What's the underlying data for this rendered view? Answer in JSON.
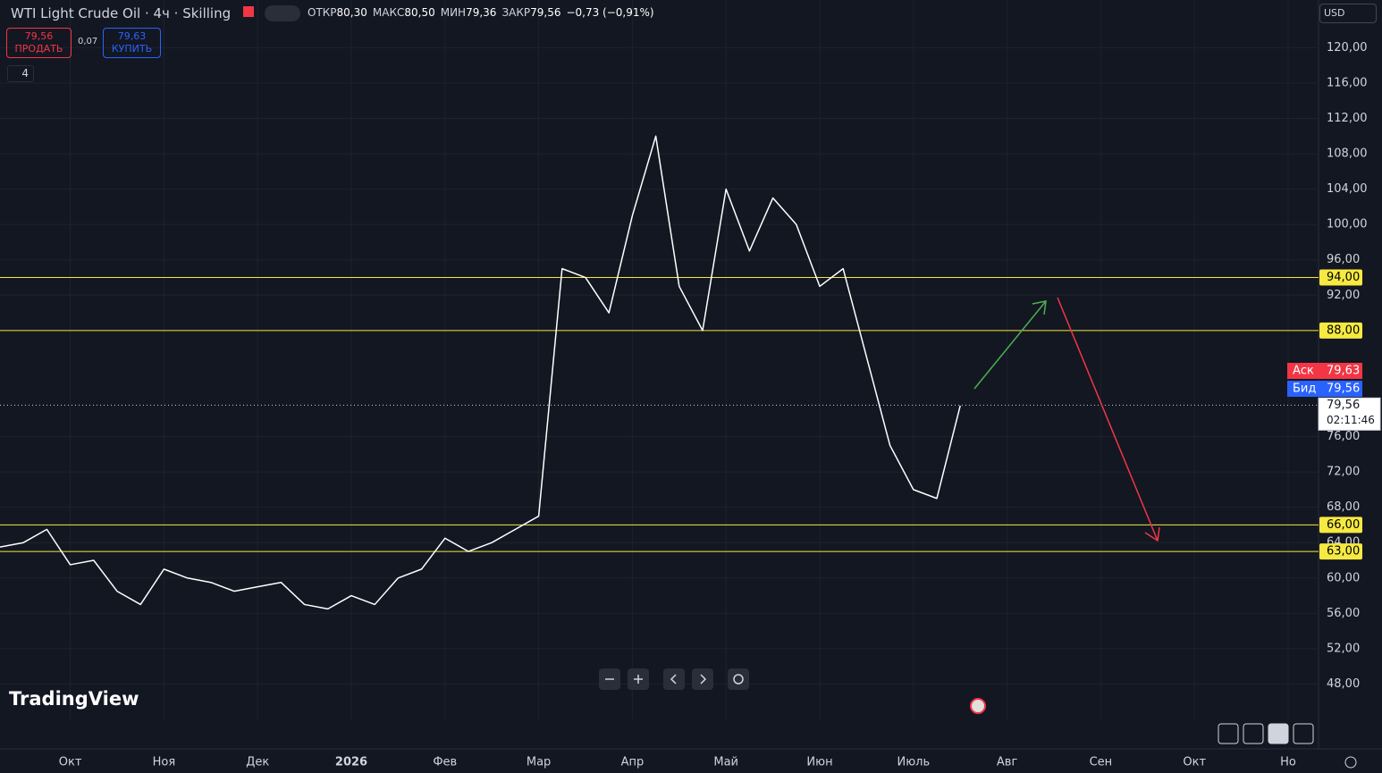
{
  "header": {
    "title": "WTI Light Crude Oil · 4ч · Skilling",
    "ohlc": [
      {
        "label": "ОТКР",
        "value": "80,30"
      },
      {
        "label": "МАКС",
        "value": "80,50"
      },
      {
        "label": "МИН",
        "value": "79,36"
      },
      {
        "label": "ЗАКР",
        "value": "79,56"
      }
    ],
    "change": "−0,73 (−0,91%)",
    "currency": "USD"
  },
  "trade": {
    "sell_price": "79,56",
    "sell": "ПРОДАТЬ",
    "spread": "0,07",
    "buy_price": "79,63",
    "buy": "КУПИТЬ"
  },
  "indicators": "4",
  "watermark": "TradingView",
  "chart_data": {
    "type": "line",
    "color": "#ffffff",
    "categories": [
      null,
      null,
      null,
      "Окт",
      null,
      null,
      null,
      "Ноя",
      null,
      null,
      null,
      "Дек",
      null,
      null,
      null,
      "2026",
      null,
      null,
      null,
      "Фев",
      null,
      null,
      null,
      "Мар",
      null,
      null,
      null,
      "Апр",
      null,
      null,
      null,
      "Май",
      null,
      null,
      null,
      "Июн",
      null,
      null,
      null,
      "Июль",
      null,
      null,
      null,
      "Авг",
      null,
      null,
      null,
      "Сен",
      null,
      null,
      null,
      "Окт",
      null,
      null,
      null,
      "Но"
    ],
    "values": [
      63.5,
      64,
      65.5,
      61.5,
      62,
      58.5,
      57,
      61,
      60,
      59.5,
      58.5,
      59,
      59.5,
      57,
      56.5,
      58,
      57,
      60,
      61,
      64.5,
      63,
      64,
      65.5,
      67,
      95,
      94,
      90,
      101,
      110,
      93,
      88,
      104,
      97,
      103,
      100,
      93,
      95,
      85,
      75,
      70,
      69,
      79.5,
      null,
      null,
      null,
      null,
      null,
      null,
      null,
      null,
      null,
      null,
      null,
      null,
      null,
      null
    ],
    "ylim": [
      44,
      125.4
    ],
    "yticks": [
      {
        "value": 48,
        "label": "48,00"
      },
      {
        "value": 52,
        "label": "52,00"
      },
      {
        "value": 56,
        "label": "56,00"
      },
      {
        "value": 60,
        "label": "60,00"
      },
      {
        "value": 64,
        "label": "64,00"
      },
      {
        "value": 68,
        "label": "68,00"
      },
      {
        "value": 72,
        "label": "72,00"
      },
      {
        "value": 76,
        "label": "76,00"
      },
      {
        "value": 92,
        "label": "92,00"
      },
      {
        "value": 96,
        "label": "96,00"
      },
      {
        "value": 100,
        "label": "100,00"
      },
      {
        "value": 104,
        "label": "104,00"
      },
      {
        "value": 108,
        "label": "108,00"
      },
      {
        "value": 112,
        "label": "112,00"
      },
      {
        "value": 116,
        "label": "116,00"
      },
      {
        "value": 120,
        "label": "120,00"
      }
    ],
    "grid": true,
    "levels": [
      {
        "value": 94,
        "label": "94,00"
      },
      {
        "value": 88,
        "label": "88,00"
      },
      {
        "value": 66,
        "label": "66,00"
      },
      {
        "value": 63,
        "label": "63,00"
      }
    ],
    "level_color": "#f5e942",
    "ask": {
      "name": "Аск",
      "value": 79.63,
      "label": "79,63",
      "color": "#f23645"
    },
    "bid": {
      "name": "Бид",
      "value": 79.56,
      "label": "79,56",
      "color": "#2962ff"
    },
    "last": {
      "value": 79.56,
      "label": "79,56",
      "countdown": "02:11:46"
    }
  }
}
